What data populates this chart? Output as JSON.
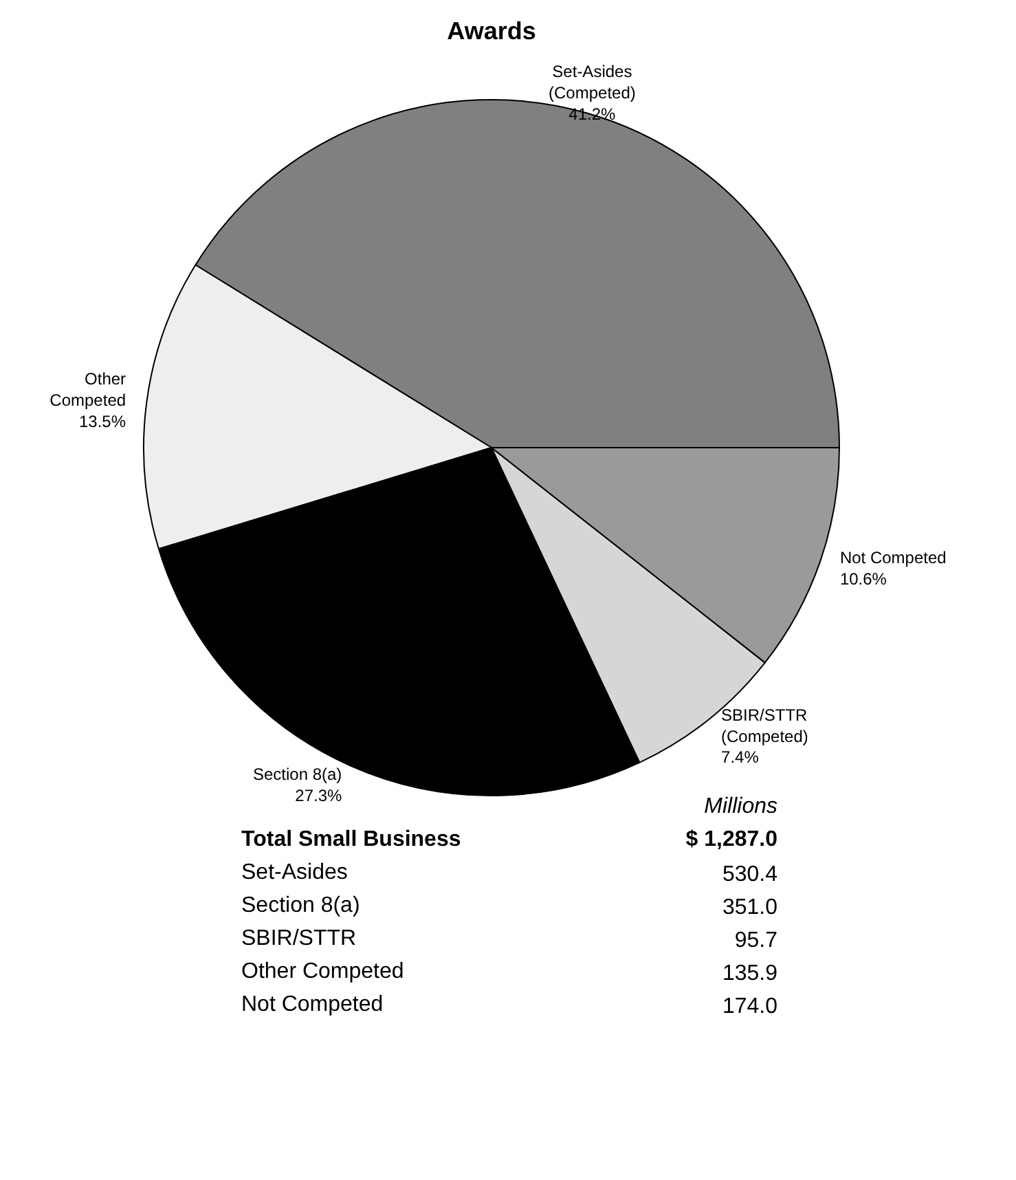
{
  "chart_data": {
    "type": "pie",
    "title": "Awards",
    "categories": [
      "Set-Asides (Competed)",
      "Other Competed",
      "Section 8(a)",
      "SBIR/STTR (Competed)",
      "Not Competed"
    ],
    "values": [
      41.2,
      13.5,
      27.3,
      7.4,
      10.6
    ],
    "value_labels": [
      "41.2%",
      "13.5%",
      "27.3%",
      "7.4%",
      "10.6%"
    ],
    "colors": [
      "#808080",
      "#eeeeee",
      "#000000",
      "#d6d6d6",
      "#9a9a9a"
    ],
    "annotations": [
      "Millions",
      "Total Small Business",
      "$ 1,287.0",
      "Set-Asides",
      "530.4",
      "Section 8(a)",
      "351.0",
      "SBIR/STTR",
      "95.7",
      "Other Competed",
      "135.9",
      "Not Competed",
      "174.0"
    ]
  }
}
